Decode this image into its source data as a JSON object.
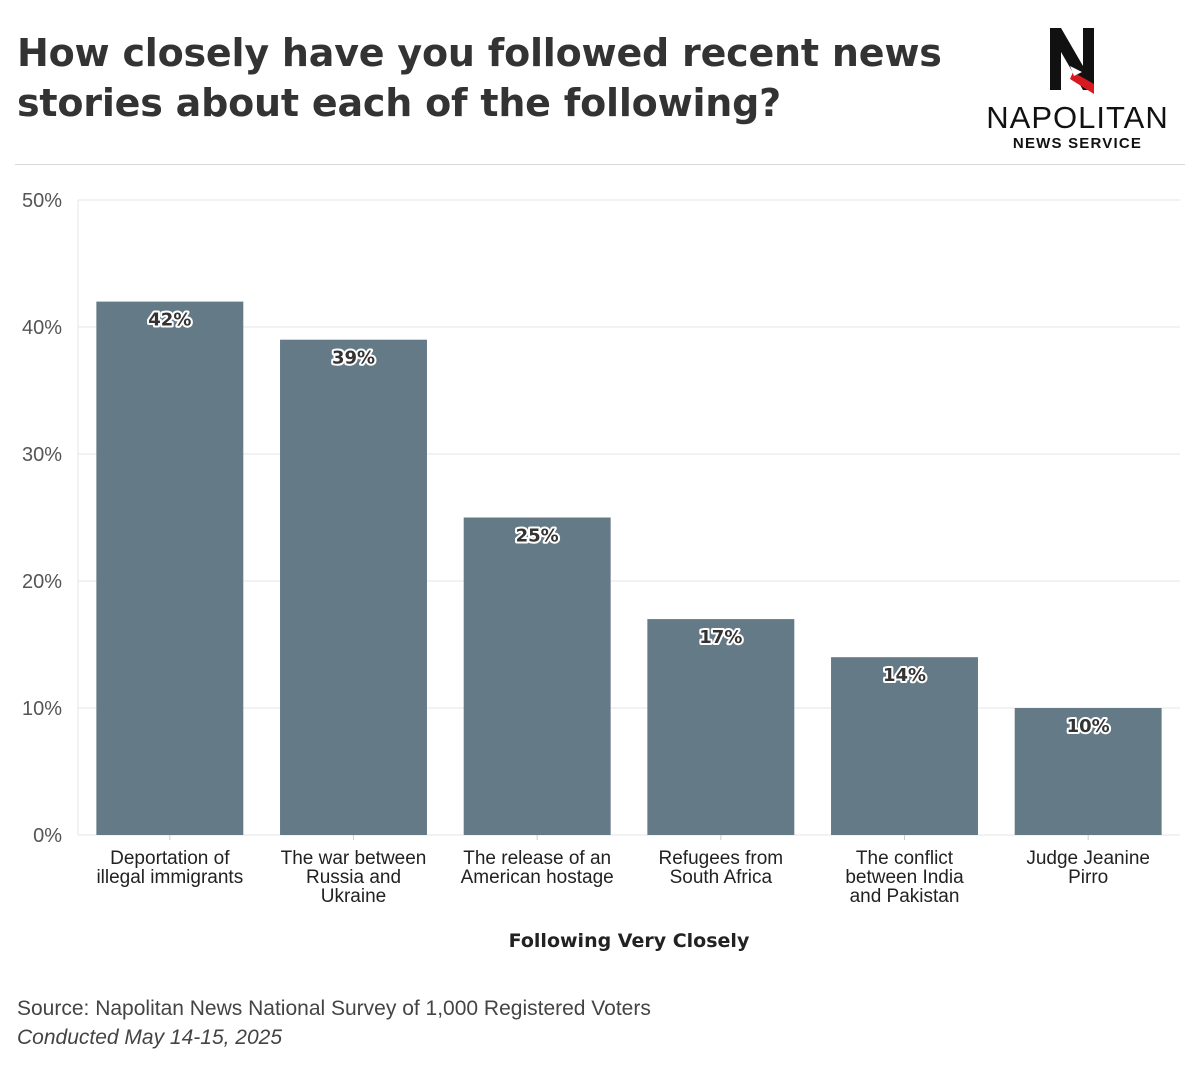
{
  "header": {
    "title": "How closely have you followed recent news stories about each of the following?"
  },
  "logo": {
    "name": "NAPOLITAN",
    "subtitle": "NEWS SERVICE",
    "colors": {
      "dark": "#111111",
      "accent": "#d71920"
    }
  },
  "footer": {
    "source": "Source: Napolitan News National Survey of 1,000 Registered Voters",
    "conducted": "Conducted May 14-15, 2025"
  },
  "chart_data": {
    "type": "bar",
    "categories": [
      [
        "Deportation of",
        "illegal immigrants"
      ],
      [
        "The war between",
        "Russia and",
        "Ukraine"
      ],
      [
        "The release of an",
        "American hostage"
      ],
      [
        "Refugees from",
        "South Africa"
      ],
      [
        "The conflict",
        "between India",
        "and Pakistan"
      ],
      [
        "Judge Jeanine",
        "Pirro"
      ]
    ],
    "values": [
      42,
      39,
      25,
      17,
      14,
      10
    ],
    "value_labels": [
      "42%",
      "39%",
      "25%",
      "17%",
      "14%",
      "10%"
    ],
    "xlabel": "Following Very Closely",
    "ylabel": "",
    "ylim": [
      0,
      50
    ],
    "yticks": [
      0,
      10,
      20,
      30,
      40,
      50
    ],
    "ytick_labels": [
      "0%",
      "10%",
      "20%",
      "30%",
      "40%",
      "50%"
    ],
    "grid": true,
    "bar_color": "#647a86"
  }
}
